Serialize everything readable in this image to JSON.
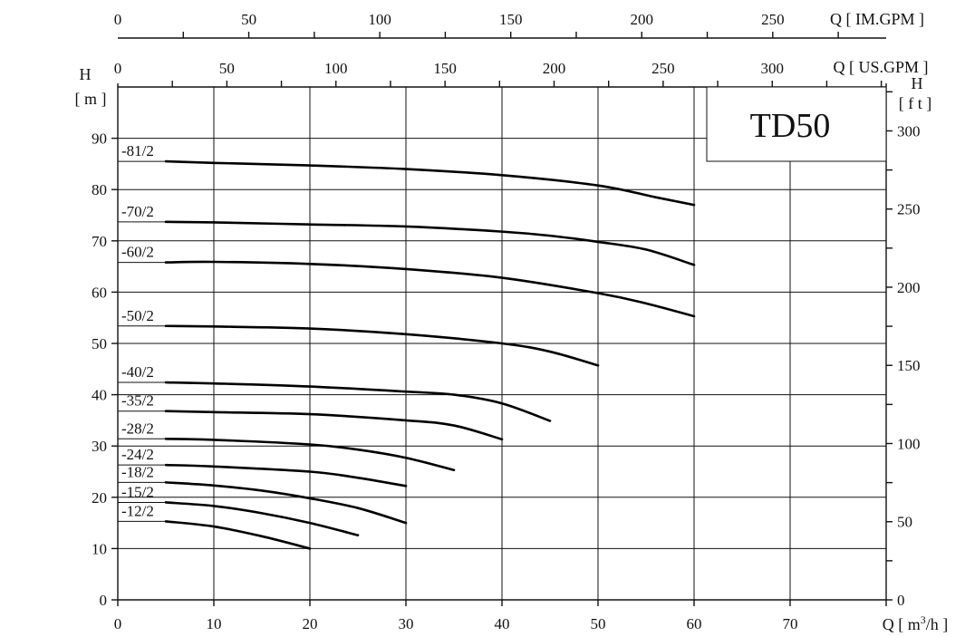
{
  "chart_data": {
    "type": "line",
    "title": "TD50",
    "xlabel": "Q [ m³/h ]",
    "ylabel": "H\n[ m ]",
    "xlim": [
      0,
      80
    ],
    "ylim": [
      0,
      100
    ],
    "x_ticks": [
      0,
      10,
      20,
      30,
      40,
      50,
      60,
      70
    ],
    "y_ticks": [
      0,
      10,
      20,
      30,
      40,
      50,
      60,
      70,
      80,
      90
    ],
    "grid": true,
    "secondary_axes": {
      "top_us": {
        "label": "Q [ US.GPM ]",
        "ticks": [
          0,
          50,
          100,
          150,
          200,
          250,
          300
        ]
      },
      "top_im": {
        "label": "Q [ IM.GPM ]",
        "ticks": [
          0,
          50,
          100,
          150,
          200,
          250
        ]
      },
      "right_ft": {
        "label_top": "H",
        "label_bottom": "[ f t ]",
        "ticks": [
          0,
          50,
          100,
          150,
          200,
          250,
          300
        ]
      }
    },
    "series": [
      {
        "name": "-81/2",
        "points": [
          [
            5,
            85.5
          ],
          [
            10,
            85.2
          ],
          [
            20,
            84.7
          ],
          [
            30,
            84.0
          ],
          [
            40,
            82.8
          ],
          [
            50,
            80.8
          ],
          [
            56,
            78.5
          ],
          [
            60,
            77.0
          ]
        ]
      },
      {
        "name": "-70/2",
        "points": [
          [
            5,
            73.7
          ],
          [
            10,
            73.6
          ],
          [
            20,
            73.2
          ],
          [
            30,
            72.8
          ],
          [
            40,
            71.8
          ],
          [
            45,
            71.0
          ],
          [
            50,
            69.8
          ],
          [
            55,
            68.3
          ],
          [
            60,
            65.3
          ]
        ]
      },
      {
        "name": "-60/2",
        "points": [
          [
            5,
            65.8
          ],
          [
            10,
            65.9
          ],
          [
            20,
            65.5
          ],
          [
            30,
            64.5
          ],
          [
            40,
            62.8
          ],
          [
            50,
            59.8
          ],
          [
            55,
            57.8
          ],
          [
            60,
            55.3
          ]
        ]
      },
      {
        "name": "-50/2",
        "points": [
          [
            5,
            53.4
          ],
          [
            10,
            53.3
          ],
          [
            20,
            52.9
          ],
          [
            30,
            51.8
          ],
          [
            40,
            50.0
          ],
          [
            45,
            48.4
          ],
          [
            50,
            45.7
          ]
        ]
      },
      {
        "name": "-40/2",
        "points": [
          [
            5,
            42.4
          ],
          [
            10,
            42.2
          ],
          [
            20,
            41.6
          ],
          [
            30,
            40.6
          ],
          [
            35,
            40.0
          ],
          [
            40,
            38.3
          ],
          [
            45,
            34.9
          ]
        ]
      },
      {
        "name": "-35/2",
        "points": [
          [
            5,
            36.8
          ],
          [
            10,
            36.6
          ],
          [
            20,
            36.2
          ],
          [
            30,
            35.0
          ],
          [
            35,
            34.0
          ],
          [
            40,
            31.3
          ]
        ]
      },
      {
        "name": "-28/2",
        "points": [
          [
            5,
            31.4
          ],
          [
            10,
            31.2
          ],
          [
            20,
            30.3
          ],
          [
            25,
            29.3
          ],
          [
            30,
            27.7
          ],
          [
            35,
            25.3
          ]
        ]
      },
      {
        "name": "-24/2",
        "points": [
          [
            5,
            26.3
          ],
          [
            10,
            26.0
          ],
          [
            20,
            25.0
          ],
          [
            25,
            23.8
          ],
          [
            30,
            22.2
          ]
        ]
      },
      {
        "name": "-18/2",
        "points": [
          [
            5,
            22.9
          ],
          [
            10,
            22.3
          ],
          [
            15,
            21.3
          ],
          [
            20,
            19.8
          ],
          [
            25,
            17.9
          ],
          [
            30,
            15.0
          ]
        ]
      },
      {
        "name": "-15/2",
        "points": [
          [
            5,
            19.0
          ],
          [
            10,
            18.3
          ],
          [
            15,
            16.9
          ],
          [
            20,
            15.0
          ],
          [
            25,
            12.6
          ]
        ]
      },
      {
        "name": "-12/2",
        "points": [
          [
            5,
            15.3
          ],
          [
            10,
            14.3
          ],
          [
            15,
            12.4
          ],
          [
            20,
            10.0
          ]
        ]
      }
    ]
  }
}
